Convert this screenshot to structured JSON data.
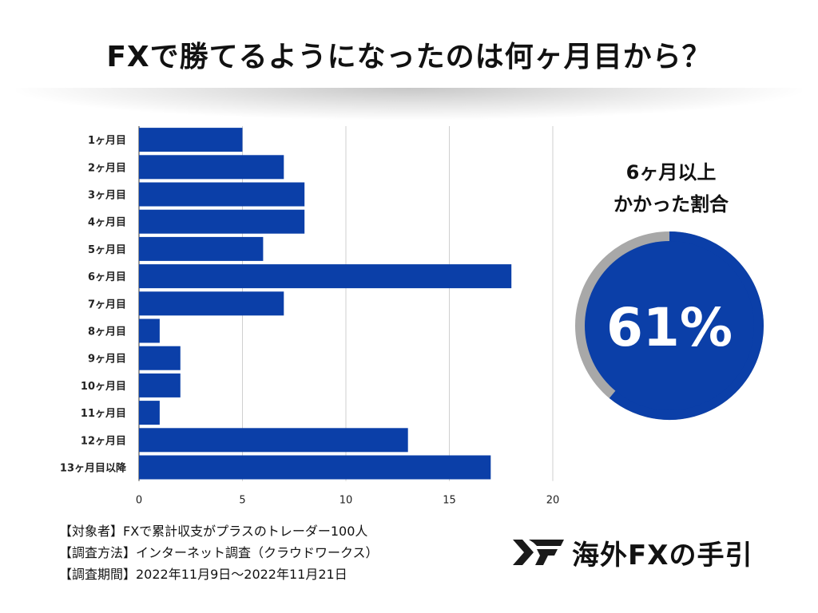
{
  "title": "FXで勝てるようになったのは何ヶ月目から？",
  "chart_data": {
    "type": "bar",
    "orientation": "horizontal",
    "categories": [
      "1ヶ月目",
      "2ヶ月目",
      "3ヶ月目",
      "4ヶ月目",
      "5ヶ月目",
      "6ヶ月目",
      "7ヶ月目",
      "8ヶ月目",
      "9ヶ月目",
      "10ヶ月目",
      "11ヶ月目",
      "12ヶ月目",
      "13ヶ月目以降"
    ],
    "values": [
      5,
      7,
      8,
      8,
      6,
      18,
      7,
      1,
      2,
      2,
      1,
      13,
      17
    ],
    "xlim": [
      0,
      20
    ],
    "xticks": [
      "0",
      "5",
      "10",
      "15",
      "20"
    ],
    "grid": true,
    "bar_color": "#0b3fa8",
    "title": "",
    "xlabel": "",
    "ylabel": ""
  },
  "side_stat": {
    "label_line1": "6ヶ月以上",
    "label_line2": "かかった割合",
    "value": "61%",
    "percent": 61,
    "fill_color": "#0b3fa8",
    "ring_color": "#a8a8a8"
  },
  "notes": [
    "【対象者】FXで累計収支がプラスのトレーダー100人",
    "【調査方法】インターネット調査（クラウドワークス）",
    "【調査期間】2022年11月9日〜2022年11月21日"
  ],
  "logo": {
    "text": "海外FXの手引",
    "icon": "fx-logo-mark-icon"
  }
}
